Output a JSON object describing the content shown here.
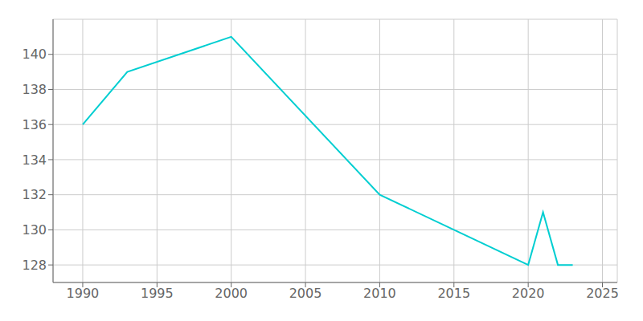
{
  "chart_data": {
    "type": "line",
    "x": [
      1990,
      1993,
      2000,
      2010,
      2015,
      2020,
      2021,
      2022,
      2023
    ],
    "values": [
      136,
      139,
      141,
      132,
      130,
      128,
      131,
      128,
      128
    ],
    "color": "#00CED1",
    "xlim": [
      1988,
      2026
    ],
    "ylim": [
      127,
      142
    ],
    "xticks": [
      1990,
      1995,
      2000,
      2005,
      2010,
      2015,
      2020,
      2025
    ],
    "yticks": [
      128,
      130,
      132,
      134,
      136,
      138,
      140
    ],
    "grid": true
  }
}
